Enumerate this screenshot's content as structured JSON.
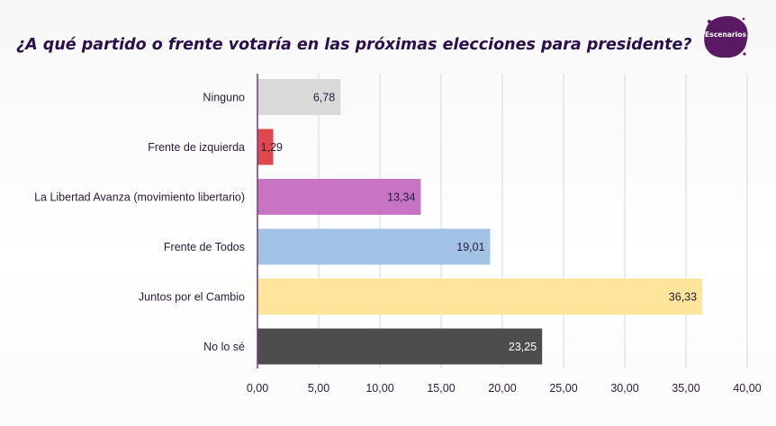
{
  "title": "¿A qué partido o frente votaría en las próximas elecciones para presidente?",
  "logo": {
    "text": "Escenarios",
    "color": "#5a1a63"
  },
  "colors": {
    "axis": "#6b3a80",
    "grid": "#d6d6d6",
    "label": "#2a1a3a",
    "title": "#2a0e4a"
  },
  "chart_data": {
    "type": "bar",
    "orientation": "horizontal",
    "title": "¿A qué partido o frente votaría en las próximas elecciones para presidente?",
    "xlabel": "",
    "ylabel": "",
    "xlim": [
      0,
      40
    ],
    "grid": true,
    "legend": "none",
    "ticks": [
      "0,00",
      "5,00",
      "10,00",
      "15,00",
      "20,00",
      "25,00",
      "30,00",
      "35,00",
      "40,00"
    ],
    "categories": [
      "Ninguno",
      "Frente de izquierda",
      "La Libertad Avanza (movimiento libertario)",
      "Frente de Todos",
      "Juntos por el Cambio",
      "No lo sé"
    ],
    "values": [
      6.78,
      1.29,
      13.34,
      19.01,
      36.33,
      23.25
    ],
    "value_labels": [
      "6,78",
      "1,29",
      "13,34",
      "19,01",
      "36,33",
      "23,25"
    ],
    "bar_colors": [
      "#d9d9d9",
      "#e0484b",
      "#c774c5",
      "#a3c3e6",
      "#fde69b",
      "#4d4d4d"
    ],
    "label_colors": [
      "#2a1a3a",
      "#2a1a3a",
      "#2a1a3a",
      "#2a1a3a",
      "#2a1a3a",
      "#ffffff"
    ]
  }
}
